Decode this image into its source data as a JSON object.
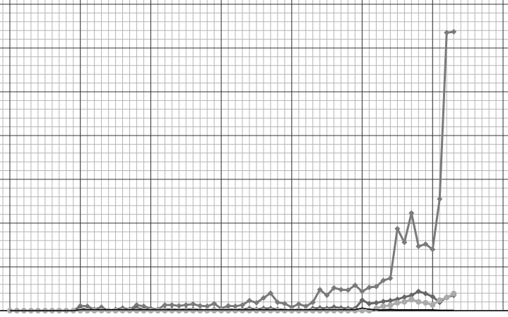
{
  "chart_data": {
    "type": "line",
    "x": [
      0,
      1,
      2,
      3,
      4,
      5,
      6,
      7,
      8,
      9,
      10,
      11,
      12,
      13,
      14,
      15,
      16,
      17,
      18,
      19,
      20,
      21,
      22,
      23,
      24,
      25,
      26,
      27,
      28,
      29,
      30,
      31,
      32,
      33,
      34,
      35,
      36,
      37,
      38,
      39,
      40,
      41,
      42,
      43,
      44,
      45,
      46,
      47,
      48,
      49,
      50,
      51,
      52,
      53,
      54,
      55,
      56,
      57,
      58,
      59,
      60,
      61,
      62,
      63
    ],
    "series": [
      {
        "color": "#7a7a7a",
        "marker": "diamond",
        "width": 3,
        "values": [
          0,
          0,
          0,
          0,
          0,
          0,
          0,
          0,
          0,
          0,
          0.11,
          0.1,
          0.03,
          0.08,
          0,
          0.03,
          0.06,
          0.03,
          0.13,
          0.1,
          0.05,
          0.03,
          0.13,
          0.13,
          0.11,
          0.13,
          0.15,
          0.11,
          0.1,
          0.16,
          0.05,
          0.11,
          0.1,
          0.13,
          0.23,
          0.18,
          0.29,
          0.4,
          0.19,
          0.16,
          0.08,
          0.15,
          0.1,
          0.19,
          0.48,
          0.35,
          0.52,
          0.48,
          0.47,
          0.58,
          0.44,
          0.53,
          0.55,
          0.69,
          0.74,
          1.87,
          1.56,
          2.23,
          1.47,
          1.52,
          1.4,
          2.55,
          6.35,
          6.37
        ]
      },
      {
        "color": "#666666",
        "marker": "diamond",
        "width": 3,
        "values": [
          0,
          0,
          0,
          0,
          0,
          0,
          0,
          0,
          0,
          0,
          0.05,
          0.03,
          0.02,
          0.03,
          0,
          0.02,
          0.03,
          0.02,
          0.06,
          0.03,
          0.02,
          0,
          0.03,
          0.03,
          0.02,
          0.03,
          0.03,
          0.02,
          0,
          0.03,
          0,
          0.03,
          0.02,
          0.03,
          0.05,
          0.03,
          0.05,
          0.05,
          0.03,
          0.02,
          0,
          0.03,
          0,
          0.05,
          0.06,
          0.05,
          0.08,
          0.06,
          0.05,
          0.05,
          0.24,
          0.16,
          0.18,
          0.21,
          0.23,
          0.26,
          0.31,
          0.35,
          0.44,
          0.39,
          0.32,
          0.19,
          0.31,
          0.35
        ]
      },
      {
        "color": "#aaaaaa",
        "marker": "circle",
        "width": 3,
        "values": [
          0,
          0,
          0,
          0,
          0,
          0,
          0,
          0,
          0,
          0,
          0,
          0,
          0,
          0,
          0,
          0,
          0,
          0,
          0,
          0,
          0,
          0,
          0,
          0,
          0,
          0,
          0,
          0,
          0,
          0,
          0,
          0,
          0,
          0,
          0,
          0,
          0,
          0,
          0,
          0,
          0,
          0,
          0,
          0,
          0,
          0,
          0,
          0,
          0,
          0,
          0,
          0,
          0.05,
          0.1,
          0.12,
          0.18,
          0.2,
          0.26,
          0.2,
          0.18,
          0.13,
          0.24,
          0.3,
          0.39
        ]
      },
      {
        "color": "#000000",
        "marker": "none",
        "width": 1.5,
        "values": [
          0,
          0,
          0,
          0,
          0,
          0,
          0,
          0,
          0,
          0,
          0.02,
          0.02,
          0.02,
          0.02,
          0.02,
          0.02,
          0.02,
          0.02,
          0.02,
          0.02,
          0.02,
          0.02,
          0.02,
          0.02,
          0.02,
          0.02,
          0.02,
          0.02,
          0.02,
          0.02,
          0.02,
          0.02,
          0.02,
          0.02,
          0.02,
          0.02,
          0.02,
          0.02,
          0.02,
          0.02,
          0.02,
          0.02,
          0.02,
          0.02,
          0.02,
          0.02,
          0.02,
          0.02,
          0.02,
          0.02,
          0.06,
          0.03,
          0.02,
          0.02,
          0.03,
          0.02,
          0.02,
          0.02,
          0.02,
          0.02,
          0.02,
          0.01,
          0.01,
          0.01
        ]
      }
    ],
    "xlim": [
      -1.4,
      70.7
    ],
    "ylim": [
      0,
      7
    ],
    "xticks": [
      0,
      10,
      20,
      30,
      40,
      50,
      60,
      70
    ],
    "yticks": [
      0,
      1,
      2,
      3,
      4,
      5,
      6,
      7
    ],
    "xminor": 1,
    "yminor": 0.2,
    "grid": true
  }
}
